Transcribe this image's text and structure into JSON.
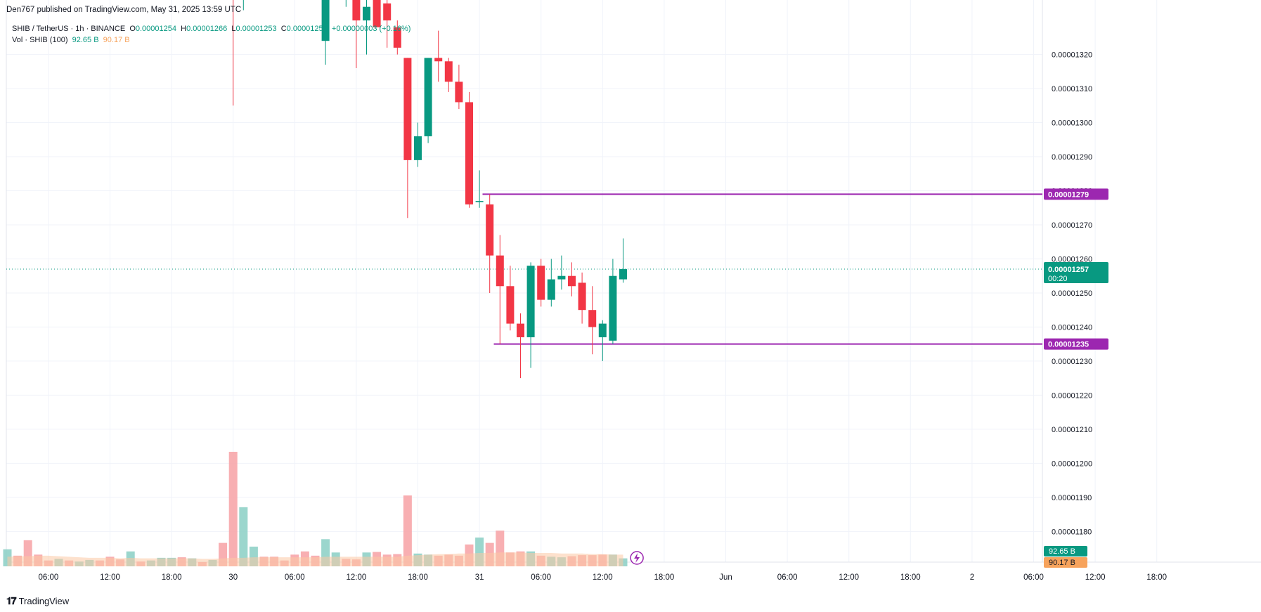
{
  "header": {
    "published": "Den767 published on TradingView.com, May 31, 2025 13:59 UTC",
    "symbol": "SHIB / TetherUS · 1h · BINANCE",
    "o_label": "O",
    "o_value": "0.00001254",
    "h_label": "H",
    "h_value": "0.00001266",
    "l_label": "L",
    "l_value": "0.00001253",
    "c_label": "C",
    "c_value": "0.00001257",
    "change": "+0.00000003 (+0.16%)",
    "vol_label": "Vol · SHIB (100)",
    "vol_up": "92.65 B",
    "vol_down": "90.17 B"
  },
  "footer": {
    "brand": "TradingView"
  },
  "colors": {
    "up": "#089981",
    "down": "#f23645",
    "line": "#9c27b0",
    "vol_up": "#89cfc4",
    "vol_down": "#f7a1a5",
    "vol_ma": "#fbc9a4"
  },
  "chart_data": {
    "type": "candlestick",
    "symbol": "SHIB / TetherUS",
    "interval": "1h",
    "exchange": "BINANCE",
    "ylim": [
      1.1745e-05,
      1.336e-05
    ],
    "y_ticks": [
      "0.00001180",
      "0.00001190",
      "0.00001200",
      "0.00001210",
      "0.00001220",
      "0.00001230",
      "0.00001240",
      "0.00001250",
      "0.00001260",
      "0.00001270",
      "0.00001280",
      "0.00001290",
      "0.00001300",
      "0.00001310",
      "0.00001320"
    ],
    "x_ticks": [
      {
        "i": 4,
        "label": "06:00"
      },
      {
        "i": 10,
        "label": "12:00"
      },
      {
        "i": 16,
        "label": "18:00"
      },
      {
        "i": 22,
        "label": "30"
      },
      {
        "i": 28,
        "label": "06:00"
      },
      {
        "i": 34,
        "label": "12:00"
      },
      {
        "i": 40,
        "label": "18:00"
      },
      {
        "i": 46,
        "label": "31"
      },
      {
        "i": 52,
        "label": "06:00"
      },
      {
        "i": 58,
        "label": "12:00"
      },
      {
        "i": 64,
        "label": "18:00"
      },
      {
        "i": 70,
        "label": "Jun"
      },
      {
        "i": 76,
        "label": "06:00"
      },
      {
        "i": 82,
        "label": "12:00"
      },
      {
        "i": 88,
        "label": "18:00"
      },
      {
        "i": 94,
        "label": "2"
      },
      {
        "i": 100,
        "label": "06:00"
      },
      {
        "i": 106,
        "label": "12:00"
      },
      {
        "i": 112,
        "label": "18:00"
      }
    ],
    "candles": [
      {
        "i": 22,
        "o": 1.34e-05,
        "h": 1.342e-05,
        "l": 1.305e-05,
        "c": 1.338e-05
      },
      {
        "i": 23,
        "o": 1.336e-05,
        "h": 1.342e-05,
        "l": 1.333e-05,
        "c": 1.34e-05
      },
      {
        "i": 31,
        "o": 1.324e-05,
        "h": 1.345e-05,
        "l": 1.317e-05,
        "c": 1.336e-05
      },
      {
        "i": 33,
        "o": 1.336e-05,
        "h": 1.342e-05,
        "l": 1.334e-05,
        "c": 1.34e-05
      },
      {
        "i": 34,
        "o": 1.34e-05,
        "h": 1.341e-05,
        "l": 1.316e-05,
        "c": 1.33e-05
      },
      {
        "i": 35,
        "o": 1.33e-05,
        "h": 1.34e-05,
        "l": 1.32e-05,
        "c": 1.334e-05
      },
      {
        "i": 36,
        "o": 1.337e-05,
        "h": 1.34e-05,
        "l": 1.328e-05,
        "c": 1.328e-05
      },
      {
        "i": 37,
        "o": 1.335e-05,
        "h": 1.34e-05,
        "l": 1.322e-05,
        "c": 1.33e-05
      },
      {
        "i": 38,
        "o": 1.328e-05,
        "h": 1.33e-05,
        "l": 1.32e-05,
        "c": 1.322e-05
      },
      {
        "i": 39,
        "o": 1.319e-05,
        "h": 1.319e-05,
        "l": 1.272e-05,
        "c": 1.289e-05
      },
      {
        "i": 40,
        "o": 1.289e-05,
        "h": 1.3e-05,
        "l": 1.287e-05,
        "c": 1.296e-05
      },
      {
        "i": 41,
        "o": 1.296e-05,
        "h": 1.319e-05,
        "l": 1.294e-05,
        "c": 1.319e-05
      },
      {
        "i": 42,
        "o": 1.319e-05,
        "h": 1.327e-05,
        "l": 1.312e-05,
        "c": 1.318e-05
      },
      {
        "i": 43,
        "o": 1.318e-05,
        "h": 1.319e-05,
        "l": 1.309e-05,
        "c": 1.312e-05
      },
      {
        "i": 44,
        "o": 1.312e-05,
        "h": 1.317e-05,
        "l": 1.304e-05,
        "c": 1.306e-05
      },
      {
        "i": 45,
        "o": 1.306e-05,
        "h": 1.309e-05,
        "l": 1.275e-05,
        "c": 1.276e-05
      },
      {
        "i": 46,
        "o": 1.277e-05,
        "h": 1.286e-05,
        "l": 1.275e-05,
        "c": 1.277e-05
      },
      {
        "i": 47,
        "o": 1.276e-05,
        "h": 1.279e-05,
        "l": 1.25e-05,
        "c": 1.261e-05
      },
      {
        "i": 48,
        "o": 1.261e-05,
        "h": 1.267e-05,
        "l": 1.235e-05,
        "c": 1.252e-05
      },
      {
        "i": 49,
        "o": 1.252e-05,
        "h": 1.258e-05,
        "l": 1.239e-05,
        "c": 1.241e-05
      },
      {
        "i": 50,
        "o": 1.241e-05,
        "h": 1.244e-05,
        "l": 1.225e-05,
        "c": 1.237e-05
      },
      {
        "i": 51,
        "o": 1.237e-05,
        "h": 1.259e-05,
        "l": 1.228e-05,
        "c": 1.258e-05
      },
      {
        "i": 52,
        "o": 1.258e-05,
        "h": 1.26e-05,
        "l": 1.246e-05,
        "c": 1.248e-05
      },
      {
        "i": 53,
        "o": 1.248e-05,
        "h": 1.26e-05,
        "l": 1.246e-05,
        "c": 1.254e-05
      },
      {
        "i": 54,
        "o": 1.254e-05,
        "h": 1.261e-05,
        "l": 1.251e-05,
        "c": 1.255e-05
      },
      {
        "i": 55,
        "o": 1.255e-05,
        "h": 1.259e-05,
        "l": 1.249e-05,
        "c": 1.252e-05
      },
      {
        "i": 56,
        "o": 1.253e-05,
        "h": 1.256e-05,
        "l": 1.241e-05,
        "c": 1.245e-05
      },
      {
        "i": 57,
        "o": 1.245e-05,
        "h": 1.252e-05,
        "l": 1.232e-05,
        "c": 1.24e-05
      },
      {
        "i": 58,
        "o": 1.237e-05,
        "h": 1.242e-05,
        "l": 1.23e-05,
        "c": 1.241e-05
      },
      {
        "i": 59,
        "o": 1.236e-05,
        "h": 1.26e-05,
        "l": 1.235e-05,
        "c": 1.255e-05
      },
      {
        "i": 60,
        "o": 1.254e-05,
        "h": 1.266e-05,
        "l": 1.253e-05,
        "c": 1.257e-05
      }
    ],
    "volume_bars": [
      {
        "i": 0,
        "v": 0.32,
        "up": true
      },
      {
        "i": 1,
        "v": 0.2,
        "up": false
      },
      {
        "i": 2,
        "v": 0.49,
        "up": false
      },
      {
        "i": 3,
        "v": 0.22,
        "up": false
      },
      {
        "i": 4,
        "v": 0.11,
        "up": false
      },
      {
        "i": 5,
        "v": 0.14,
        "up": true
      },
      {
        "i": 6,
        "v": 0.11,
        "up": false
      },
      {
        "i": 7,
        "v": 0.09,
        "up": true
      },
      {
        "i": 8,
        "v": 0.12,
        "up": true
      },
      {
        "i": 9,
        "v": 0.11,
        "up": false
      },
      {
        "i": 10,
        "v": 0.18,
        "up": false
      },
      {
        "i": 11,
        "v": 0.13,
        "up": false
      },
      {
        "i": 12,
        "v": 0.28,
        "up": true
      },
      {
        "i": 13,
        "v": 0.09,
        "up": false
      },
      {
        "i": 14,
        "v": 0.11,
        "up": true
      },
      {
        "i": 15,
        "v": 0.16,
        "up": true
      },
      {
        "i": 16,
        "v": 0.16,
        "up": true
      },
      {
        "i": 17,
        "v": 0.17,
        "up": false
      },
      {
        "i": 18,
        "v": 0.15,
        "up": true
      },
      {
        "i": 19,
        "v": 0.08,
        "up": false
      },
      {
        "i": 20,
        "v": 0.12,
        "up": true
      },
      {
        "i": 21,
        "v": 0.44,
        "up": false
      },
      {
        "i": 22,
        "v": 2.15,
        "up": false
      },
      {
        "i": 23,
        "v": 1.11,
        "up": true
      },
      {
        "i": 24,
        "v": 0.37,
        "up": true
      },
      {
        "i": 25,
        "v": 0.18,
        "up": false
      },
      {
        "i": 26,
        "v": 0.18,
        "up": false
      },
      {
        "i": 27,
        "v": 0.11,
        "up": false
      },
      {
        "i": 28,
        "v": 0.22,
        "up": false
      },
      {
        "i": 29,
        "v": 0.28,
        "up": false
      },
      {
        "i": 30,
        "v": 0.2,
        "up": false
      },
      {
        "i": 31,
        "v": 0.51,
        "up": true
      },
      {
        "i": 32,
        "v": 0.26,
        "up": true
      },
      {
        "i": 33,
        "v": 0.14,
        "up": false
      },
      {
        "i": 34,
        "v": 0.13,
        "up": false
      },
      {
        "i": 35,
        "v": 0.26,
        "up": true
      },
      {
        "i": 36,
        "v": 0.27,
        "up": false
      },
      {
        "i": 37,
        "v": 0.22,
        "up": false
      },
      {
        "i": 38,
        "v": 0.23,
        "up": false
      },
      {
        "i": 39,
        "v": 1.33,
        "up": false
      },
      {
        "i": 40,
        "v": 0.24,
        "up": true
      },
      {
        "i": 41,
        "v": 0.22,
        "up": true
      },
      {
        "i": 42,
        "v": 0.2,
        "up": false
      },
      {
        "i": 43,
        "v": 0.22,
        "up": false
      },
      {
        "i": 44,
        "v": 0.2,
        "up": false
      },
      {
        "i": 45,
        "v": 0.41,
        "up": false
      },
      {
        "i": 46,
        "v": 0.54,
        "up": true
      },
      {
        "i": 47,
        "v": 0.44,
        "up": false
      },
      {
        "i": 48,
        "v": 0.67,
        "up": false
      },
      {
        "i": 49,
        "v": 0.26,
        "up": false
      },
      {
        "i": 50,
        "v": 0.28,
        "up": false
      },
      {
        "i": 51,
        "v": 0.28,
        "up": true
      },
      {
        "i": 52,
        "v": 0.2,
        "up": false
      },
      {
        "i": 53,
        "v": 0.18,
        "up": true
      },
      {
        "i": 54,
        "v": 0.17,
        "up": true
      },
      {
        "i": 55,
        "v": 0.19,
        "up": false
      },
      {
        "i": 56,
        "v": 0.21,
        "up": false
      },
      {
        "i": 57,
        "v": 0.21,
        "up": false
      },
      {
        "i": 58,
        "v": 0.22,
        "up": false
      },
      {
        "i": 59,
        "v": 0.22,
        "up": true
      },
      {
        "i": 60,
        "v": 0.15,
        "up": true
      }
    ],
    "volume_ma": [
      0.18,
      0.19,
      0.19,
      0.2,
      0.2,
      0.19,
      0.18,
      0.17,
      0.16,
      0.16,
      0.16,
      0.15,
      0.16,
      0.15,
      0.15,
      0.15,
      0.15,
      0.15,
      0.15,
      0.14,
      0.14,
      0.15,
      0.16,
      0.16,
      0.17,
      0.17,
      0.17,
      0.17,
      0.17,
      0.17,
      0.17,
      0.18,
      0.18,
      0.18,
      0.18,
      0.18,
      0.18,
      0.18,
      0.18,
      0.2,
      0.21,
      0.22,
      0.23,
      0.23,
      0.24,
      0.24,
      0.25,
      0.25,
      0.26,
      0.26,
      0.26,
      0.25,
      0.25,
      0.25,
      0.24,
      0.24,
      0.24,
      0.23,
      0.23,
      0.22,
      0.22
    ],
    "volume_max": 3.9,
    "horizontal_lines": [
      {
        "value": 1.279e-05,
        "label": "0.00001279",
        "from_i": 46.3
      },
      {
        "value": 1.235e-05,
        "label": "0.00001235",
        "from_i": 47.4
      }
    ],
    "last_price": {
      "value": 1.257e-05,
      "label": "0.00001257",
      "countdown": "00:20"
    },
    "volume_labels": {
      "up": "92.65 B",
      "down": "90.17 B"
    }
  }
}
